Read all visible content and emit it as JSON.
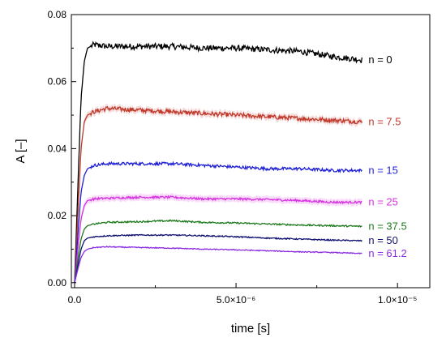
{
  "chart_data": {
    "type": "line",
    "xlabel": "time [s]",
    "ylabel": "A  [–]",
    "xlim": [
      -1e-07,
      1.1e-05
    ],
    "ylim": [
      -0.0015,
      0.08
    ],
    "xticks": [
      0,
      5e-06,
      1e-05
    ],
    "xtick_labels": [
      "0.0",
      "5.0×10⁻⁶",
      "1.0×10⁻⁵"
    ],
    "yticks": [
      0.0,
      0.02,
      0.04,
      0.06,
      0.08
    ],
    "ytick_labels": [
      "0.00",
      "0.02",
      "0.04",
      "0.06",
      "0.08"
    ],
    "grid": false,
    "legend": "none (series labelled inline at right end)",
    "series": [
      {
        "name": "n = 0",
        "color": "#000000",
        "band": false,
        "x": [
          0,
          1e-07,
          2e-07,
          3e-07,
          4e-07,
          6e-07,
          1e-06,
          2e-06,
          3e-06,
          4e-06,
          5e-06,
          6e-06,
          7e-06,
          8e-06,
          8.9e-06
        ],
        "y": [
          0,
          0.028,
          0.055,
          0.066,
          0.07,
          0.071,
          0.0705,
          0.0705,
          0.0705,
          0.07,
          0.07,
          0.0695,
          0.069,
          0.0675,
          0.0665
        ]
      },
      {
        "name": "n = 7.5",
        "color": "#c0392b",
        "band": true,
        "x": [
          0,
          1e-07,
          2e-07,
          3e-07,
          4e-07,
          6e-07,
          1e-06,
          2e-06,
          3e-06,
          4e-06,
          5e-06,
          6e-06,
          7e-06,
          8e-06,
          8.9e-06
        ],
        "y": [
          0,
          0.02,
          0.04,
          0.048,
          0.05,
          0.051,
          0.052,
          0.0515,
          0.051,
          0.0505,
          0.05,
          0.0495,
          0.049,
          0.0485,
          0.048
        ]
      },
      {
        "name": "n = 15",
        "color": "#1f1fd6",
        "band": false,
        "x": [
          0,
          1e-07,
          2e-07,
          3e-07,
          4e-07,
          6e-07,
          1e-06,
          2e-06,
          3e-06,
          4e-06,
          5e-06,
          6e-06,
          7e-06,
          8e-06,
          8.9e-06
        ],
        "y": [
          0,
          0.014,
          0.027,
          0.032,
          0.034,
          0.035,
          0.0355,
          0.0355,
          0.0355,
          0.035,
          0.0345,
          0.034,
          0.034,
          0.0335,
          0.0335
        ]
      },
      {
        "name": "n = 25",
        "color": "#d633e0",
        "band": true,
        "x": [
          0,
          1e-07,
          2e-07,
          3e-07,
          4e-07,
          6e-07,
          1e-06,
          2e-06,
          3e-06,
          4e-06,
          5e-06,
          6e-06,
          7e-06,
          8e-06,
          8.9e-06
        ],
        "y": [
          0,
          0.01,
          0.019,
          0.023,
          0.0245,
          0.025,
          0.0252,
          0.0255,
          0.0255,
          0.025,
          0.025,
          0.0248,
          0.0245,
          0.024,
          0.024
        ]
      },
      {
        "name": "n = 37.5",
        "color": "#1e7a1e",
        "band": false,
        "x": [
          0,
          1e-07,
          2e-07,
          3e-07,
          4e-07,
          6e-07,
          1e-06,
          2e-06,
          3e-06,
          4e-06,
          5e-06,
          6e-06,
          7e-06,
          8e-06,
          8.9e-06
        ],
        "y": [
          0,
          0.007,
          0.013,
          0.016,
          0.017,
          0.0175,
          0.018,
          0.0182,
          0.0185,
          0.018,
          0.0178,
          0.0175,
          0.0172,
          0.017,
          0.0168
        ]
      },
      {
        "name": "n = 50",
        "color": "#101070",
        "band": false,
        "x": [
          0,
          1e-07,
          2e-07,
          3e-07,
          4e-07,
          6e-07,
          1e-06,
          2e-06,
          3e-06,
          4e-06,
          5e-06,
          6e-06,
          7e-06,
          8e-06,
          8.9e-06
        ],
        "y": [
          0,
          0.005,
          0.01,
          0.0125,
          0.0133,
          0.0137,
          0.014,
          0.0142,
          0.0142,
          0.014,
          0.0137,
          0.0133,
          0.013,
          0.0127,
          0.0125
        ]
      },
      {
        "name": "n = 61.2",
        "color": "#8a2be2",
        "band": false,
        "x": [
          0,
          1e-07,
          2e-07,
          3e-07,
          4e-07,
          6e-07,
          1e-06,
          2e-06,
          3e-06,
          4e-06,
          5e-06,
          6e-06,
          7e-06,
          8e-06,
          8.9e-06
        ],
        "y": [
          0,
          0.004,
          0.0075,
          0.0093,
          0.01,
          0.0105,
          0.0107,
          0.0105,
          0.0103,
          0.01,
          0.0098,
          0.0095,
          0.0092,
          0.009,
          0.0087
        ]
      }
    ]
  }
}
